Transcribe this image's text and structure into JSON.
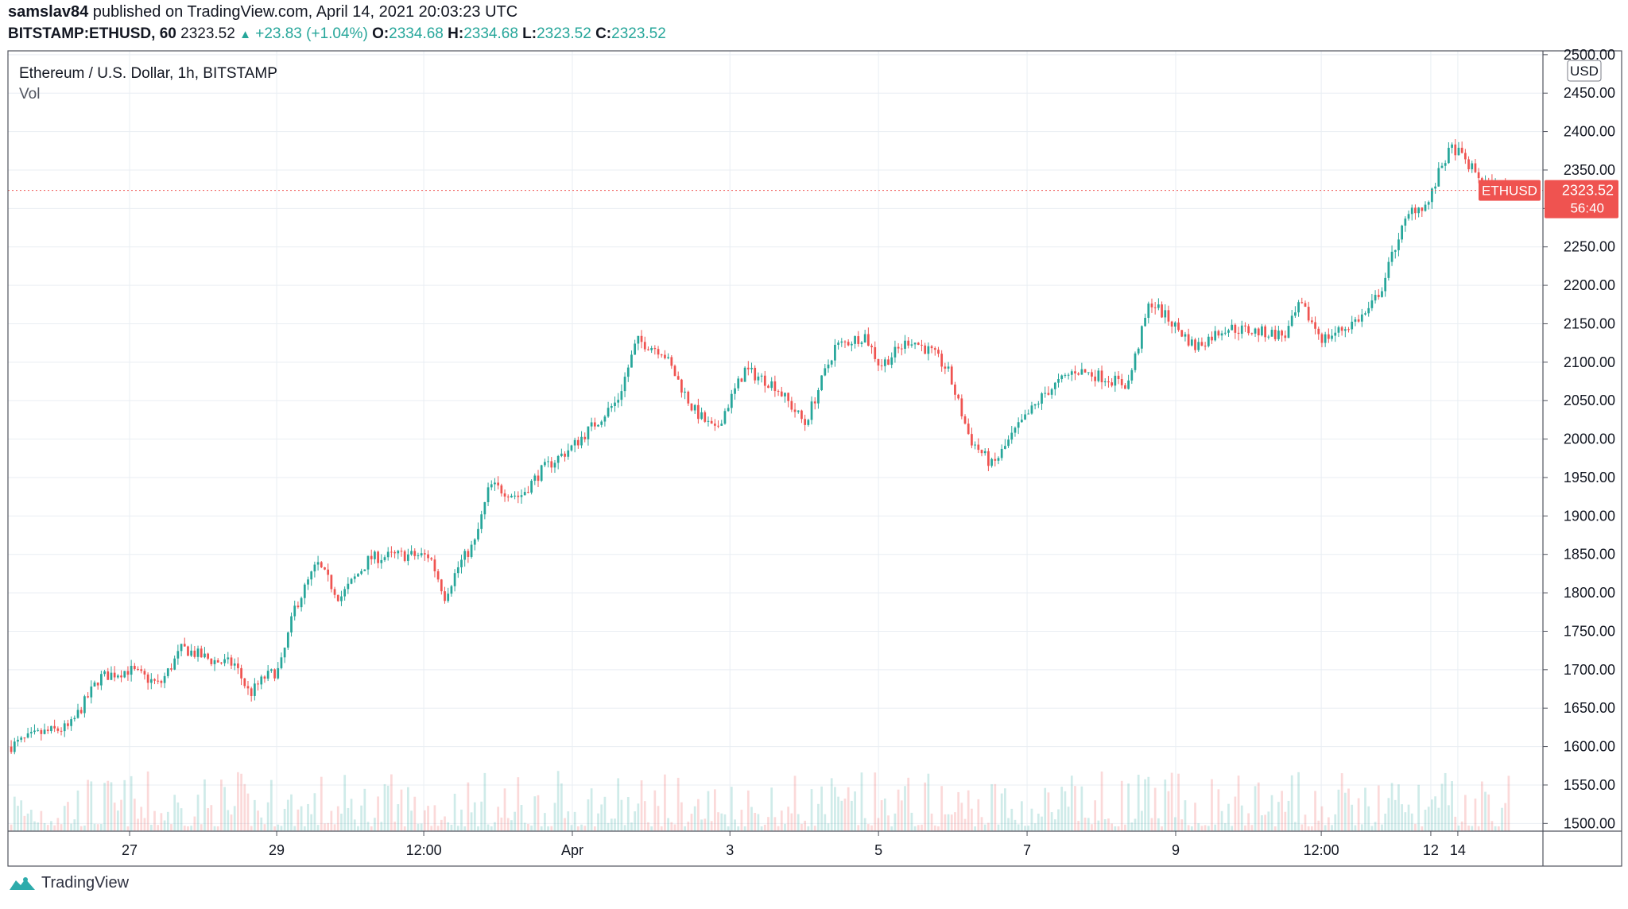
{
  "header": {
    "publisher_user": "samslav84",
    "publisher_text": "published on TradingView.com, April 14, 2021 20:03:23 UTC",
    "symbol": "BITSTAMP:ETHUSD, 60",
    "last": "2323.52",
    "change": "+23.83 (+1.04%)",
    "o_label": "O:",
    "o_value": "2334.68",
    "h_label": "H:",
    "h_value": "2334.68",
    "l_label": "L:",
    "l_value": "2323.52",
    "c_label": "C:",
    "c_value": "2323.52"
  },
  "colors": {
    "up": "#26a69a",
    "down": "#ef5350",
    "grid": "#e9eef3",
    "price_label_bg": "#ef5350"
  },
  "chart_data": {
    "type": "candlestick",
    "title": "Ethereum / U.S. Dollar, 1h, BITSTAMP",
    "volume_label": "Vol",
    "currency": "USD",
    "ylim": [
      1490,
      2505
    ],
    "y_ticks": [
      1500,
      1550,
      1600,
      1650,
      1700,
      1750,
      1800,
      1850,
      1900,
      1950,
      2000,
      2050,
      2100,
      2150,
      2200,
      2250,
      2300,
      2350,
      2400,
      2450,
      2500
    ],
    "y_tick_labels": [
      "1500.00",
      "1550.00",
      "1600.00",
      "1650.00",
      "1700.00",
      "1750.00",
      "1800.00",
      "1850.00",
      "1900.00",
      "1950.00",
      "2000.00",
      "2050.00",
      "2100.00",
      "2150.00",
      "2200.00",
      "2250.00",
      "2300.00",
      "2350.00",
      "2400.00",
      "2450.00",
      "2500.00"
    ],
    "x_ticks": [
      "27",
      "29",
      "12:00",
      "Apr",
      "3",
      "5",
      "7",
      "9",
      "12:00",
      "12",
      "14"
    ],
    "x_tick_positions": [
      0.08,
      0.178,
      0.276,
      0.375,
      0.48,
      0.579,
      0.678,
      0.777,
      0.874,
      0.947,
      0.965
    ],
    "price_path": [
      [
        0.0,
        1600
      ],
      [
        0.02,
        1617
      ],
      [
        0.04,
        1625
      ],
      [
        0.06,
        1690
      ],
      [
        0.08,
        1700
      ],
      [
        0.1,
        1680
      ],
      [
        0.115,
        1728
      ],
      [
        0.135,
        1712
      ],
      [
        0.15,
        1707
      ],
      [
        0.16,
        1668
      ],
      [
        0.17,
        1690
      ],
      [
        0.18,
        1700
      ],
      [
        0.19,
        1780
      ],
      [
        0.205,
        1838
      ],
      [
        0.22,
        1793
      ],
      [
        0.24,
        1845
      ],
      [
        0.26,
        1849
      ],
      [
        0.28,
        1848
      ],
      [
        0.29,
        1796
      ],
      [
        0.3,
        1838
      ],
      [
        0.31,
        1865
      ],
      [
        0.32,
        1940
      ],
      [
        0.34,
        1925
      ],
      [
        0.355,
        1960
      ],
      [
        0.375,
        1990
      ],
      [
        0.39,
        2020
      ],
      [
        0.405,
        2050
      ],
      [
        0.418,
        2128
      ],
      [
        0.435,
        2115
      ],
      [
        0.455,
        2040
      ],
      [
        0.47,
        2010
      ],
      [
        0.49,
        2090
      ],
      [
        0.51,
        2070
      ],
      [
        0.53,
        2020
      ],
      [
        0.55,
        2120
      ],
      [
        0.57,
        2135
      ],
      [
        0.58,
        2095
      ],
      [
        0.6,
        2130
      ],
      [
        0.615,
        2112
      ],
      [
        0.625,
        2090
      ],
      [
        0.64,
        2000
      ],
      [
        0.655,
        1965
      ],
      [
        0.67,
        2010
      ],
      [
        0.69,
        2060
      ],
      [
        0.71,
        2090
      ],
      [
        0.73,
        2080
      ],
      [
        0.745,
        2070
      ],
      [
        0.76,
        2180
      ],
      [
        0.775,
        2150
      ],
      [
        0.79,
        2120
      ],
      [
        0.81,
        2145
      ],
      [
        0.83,
        2140
      ],
      [
        0.85,
        2135
      ],
      [
        0.86,
        2175
      ],
      [
        0.875,
        2130
      ],
      [
        0.89,
        2145
      ],
      [
        0.905,
        2165
      ],
      [
        0.915,
        2200
      ],
      [
        0.925,
        2262
      ],
      [
        0.935,
        2300
      ],
      [
        0.945,
        2305
      ],
      [
        0.955,
        2360
      ],
      [
        0.962,
        2380
      ],
      [
        0.975,
        2350
      ],
      [
        0.985,
        2330
      ],
      [
        1.0,
        2323.52
      ]
    ],
    "last_price": 2323.52,
    "last_price_label": "2323.52",
    "price_tag_label": "ETHUSD",
    "countdown": "56:40"
  },
  "footer": {
    "brand": "TradingView"
  }
}
